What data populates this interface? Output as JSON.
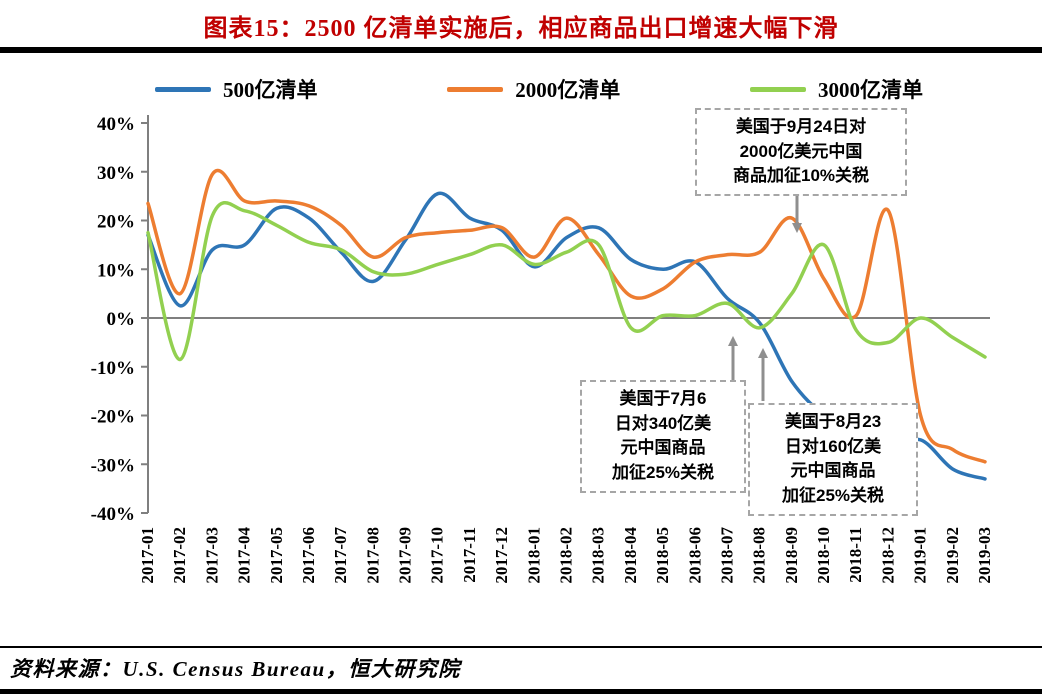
{
  "header": {
    "title": "图表15：2500 亿清单实施后，相应商品出口增速大幅下滑"
  },
  "footer": {
    "source": "资料来源：U.S. Census Bureau，恒大研究院"
  },
  "chart_data": {
    "type": "line",
    "title": "图表15：2500 亿清单实施后，相应商品出口增速大幅下滑",
    "xlabel": "",
    "ylabel": "",
    "ylim": [
      -40,
      40
    ],
    "ytick_step": 10,
    "yticks": [
      "40%",
      "30%",
      "20%",
      "10%",
      "0%",
      "-10%",
      "-20%",
      "-30%",
      "-40%"
    ],
    "grid": "zero-line-only",
    "legend_position": "top",
    "categories": [
      "2017-01",
      "2017-02",
      "2017-03",
      "2017-04",
      "2017-05",
      "2017-06",
      "2017-07",
      "2017-08",
      "2017-09",
      "2017-10",
      "2017-11",
      "2017-12",
      "2018-01",
      "2018-02",
      "2018-03",
      "2018-04",
      "2018-05",
      "2018-06",
      "2018-07",
      "2018-08",
      "2018-09",
      "2018-10",
      "2018-11",
      "2018-12",
      "2019-01",
      "2019-02",
      "2019-03"
    ],
    "series": [
      {
        "name": "500亿清单",
        "color": "#2e75b6",
        "values": [
          17,
          2.5,
          14,
          15,
          22.5,
          20.5,
          13.5,
          7.5,
          16,
          25.5,
          20.5,
          18,
          10.5,
          16.5,
          18.5,
          12,
          10,
          11.5,
          4,
          -1,
          -13,
          -20,
          -24,
          -26.5,
          -25,
          -31,
          -33
        ]
      },
      {
        "name": "2000亿清单",
        "color": "#ed7d31",
        "values": [
          23.5,
          5,
          29.5,
          24,
          24,
          23,
          19,
          12.5,
          16.5,
          17.5,
          18,
          18.5,
          12.5,
          20.5,
          13,
          4.5,
          6,
          11.5,
          13,
          13.5,
          20.5,
          8,
          0.5,
          22,
          -20,
          -27,
          -29.5
        ]
      },
      {
        "name": "3000亿清单",
        "color": "#92d050",
        "values": [
          17.5,
          -8.5,
          21,
          22,
          19,
          15.5,
          14,
          9.5,
          9,
          11,
          13,
          15,
          11,
          13.5,
          15,
          -2,
          0.5,
          0.5,
          3,
          -2,
          5,
          15,
          -2.5,
          -5,
          0,
          -4,
          -8
        ]
      }
    ],
    "annotations": [
      {
        "text": "美国于9月24日对\n2000亿美元中国\n商品加征10%关税",
        "arrow": "down",
        "points_to": "2018-09"
      },
      {
        "text": "美国于7月6\n日对340亿美\n元中国商品\n加征25%关税",
        "arrow": "up",
        "points_to": "2018-07"
      },
      {
        "text": "美国于8月23\n日对160亿美\n元中国商品\n加征25%关税",
        "arrow": "up",
        "points_to": "2018-08"
      }
    ]
  }
}
